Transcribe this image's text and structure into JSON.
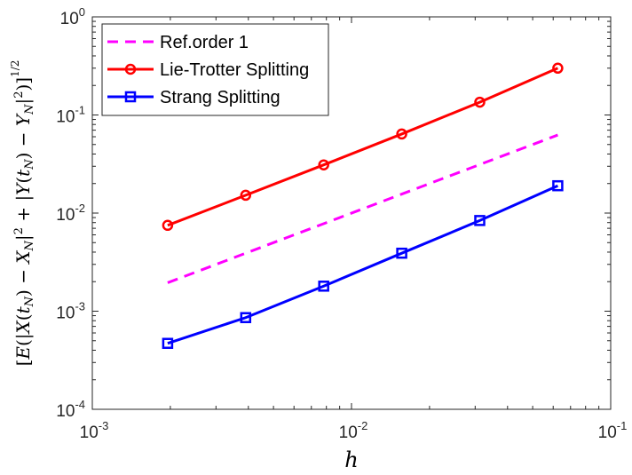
{
  "chart_data": {
    "type": "line",
    "xscale": "log",
    "yscale": "log",
    "xlim": [
      0.001,
      0.1
    ],
    "ylim": [
      0.0001,
      1
    ],
    "grid": false,
    "legend_position": "top-left",
    "xlabel": "h",
    "ylabel": "[E(|X(t_N) − X_N|² + |Y(t_N) − Y_N|²)]^(1/2)",
    "xticks": [
      {
        "value": 0.001,
        "base": "10",
        "exp": "-3"
      },
      {
        "value": 0.01,
        "base": "10",
        "exp": "-2"
      },
      {
        "value": 0.1,
        "base": "10",
        "exp": "-1"
      }
    ],
    "yticks": [
      {
        "value": 0.0001,
        "base": "10",
        "exp": "-4"
      },
      {
        "value": 0.001,
        "base": "10",
        "exp": "-3"
      },
      {
        "value": 0.01,
        "base": "10",
        "exp": "-2"
      },
      {
        "value": 0.1,
        "base": "10",
        "exp": "-1"
      },
      {
        "value": 1,
        "base": "10",
        "exp": "0"
      }
    ],
    "series": [
      {
        "name": "Ref.order 1",
        "color": "#ff00ff",
        "style": "dashed",
        "marker": "none",
        "x": [
          0.001953125,
          0.0625
        ],
        "y": [
          0.00195,
          0.0625
        ]
      },
      {
        "name": "Lie-Trotter Splitting",
        "color": "#ff0000",
        "style": "solid",
        "marker": "circle",
        "x": [
          0.001953125,
          0.00390625,
          0.0078125,
          0.015625,
          0.03125,
          0.0625
        ],
        "y": [
          0.0075,
          0.0152,
          0.031,
          0.064,
          0.135,
          0.3
        ]
      },
      {
        "name": "Strang Splitting",
        "color": "#0000ff",
        "style": "solid",
        "marker": "square",
        "x": [
          0.001953125,
          0.00390625,
          0.0078125,
          0.015625,
          0.03125,
          0.0625
        ],
        "y": [
          0.00047,
          0.00086,
          0.0018,
          0.0039,
          0.0084,
          0.019
        ]
      }
    ]
  }
}
